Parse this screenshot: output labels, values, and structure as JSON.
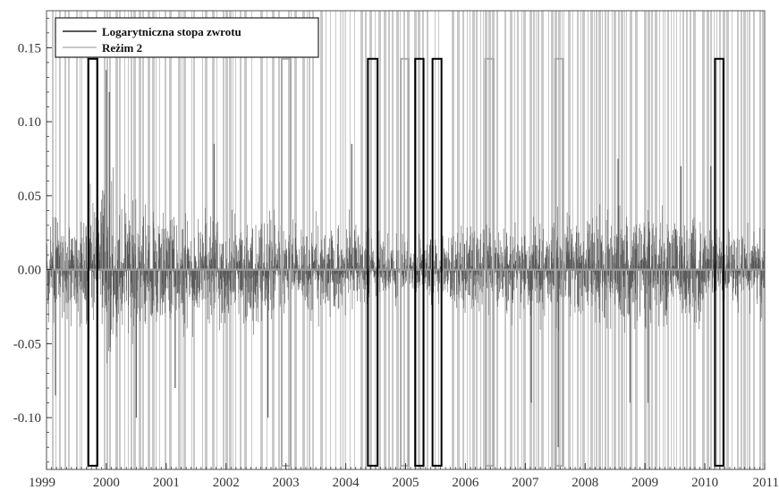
{
  "chart_data": {
    "type": "line",
    "title": "",
    "xlabel": "",
    "ylabel": "",
    "xlim": [
      1999,
      2011
    ],
    "ylim": [
      -0.135,
      0.175
    ],
    "x_ticks": [
      1999,
      2000,
      2001,
      2002,
      2003,
      2004,
      2005,
      2006,
      2007,
      2008,
      2009,
      2010,
      2011
    ],
    "x_tick_labels": [
      "1999",
      "2000",
      "2001",
      "2002",
      "2003",
      "2004",
      "2005",
      "2006",
      "2007",
      "2008",
      "2009",
      "2010",
      "2011"
    ],
    "y_ticks": [
      -0.1,
      -0.05,
      0.0,
      0.05,
      0.1,
      0.15
    ],
    "y_tick_labels": [
      "-0.10",
      "-0.05",
      "0.00",
      "0.05",
      "0.10",
      "0.15"
    ],
    "legend": {
      "placement": "top-left",
      "entries": [
        "Logarytniczna stopa zwrotu",
        "Reżim 2"
      ]
    },
    "series": [
      {
        "name": "Logarytniczna stopa zwrotu",
        "color": "#5a5a5a",
        "amplitude_profile": {
          "x": [
            1999.0,
            1999.5,
            1999.8,
            2000.0,
            2000.3,
            2000.7,
            2001.0,
            2001.5,
            2002.0,
            2002.5,
            2003.0,
            2003.5,
            2004.0,
            2004.5,
            2005.0,
            2005.5,
            2006.0,
            2006.5,
            2007.0,
            2007.5,
            2008.0,
            2008.5,
            2009.0,
            2009.5,
            2010.0,
            2010.5,
            2011.0
          ],
          "y": [
            0.055,
            0.05,
            0.07,
            0.085,
            0.075,
            0.06,
            0.06,
            0.055,
            0.055,
            0.05,
            0.045,
            0.045,
            0.045,
            0.035,
            0.03,
            0.03,
            0.04,
            0.045,
            0.04,
            0.05,
            0.055,
            0.06,
            0.06,
            0.05,
            0.045,
            0.04,
            0.04
          ]
        },
        "spikes": [
          {
            "x": 1999.15,
            "y": -0.085
          },
          {
            "x": 1999.85,
            "y": -0.1
          },
          {
            "x": 2000.0,
            "y": 0.135
          },
          {
            "x": 2000.05,
            "y": 0.12
          },
          {
            "x": 2000.5,
            "y": -0.1
          },
          {
            "x": 2001.15,
            "y": -0.08
          },
          {
            "x": 2001.8,
            "y": 0.085
          },
          {
            "x": 2002.7,
            "y": -0.1
          },
          {
            "x": 2004.1,
            "y": 0.085
          },
          {
            "x": 2007.1,
            "y": -0.09
          },
          {
            "x": 2007.55,
            "y": -0.12
          },
          {
            "x": 2008.55,
            "y": 0.075
          },
          {
            "x": 2008.75,
            "y": -0.09
          },
          {
            "x": 2009.05,
            "y": -0.09
          },
          {
            "x": 2009.6,
            "y": 0.07
          },
          {
            "x": 2010.1,
            "y": 0.07
          }
        ]
      },
      {
        "name": "Reżim 2",
        "color": "#c8c8c8",
        "density_profile": {
          "x": [
            1999.0,
            2000.0,
            2001.0,
            2002.0,
            2003.0,
            2004.0,
            2004.5,
            2005.0,
            2005.5,
            2006.0,
            2007.0,
            2008.0,
            2009.0,
            2010.0,
            2011.0
          ],
          "y": [
            0.32,
            0.38,
            0.36,
            0.34,
            0.3,
            0.34,
            0.28,
            0.24,
            0.28,
            0.3,
            0.38,
            0.44,
            0.46,
            0.42,
            0.44
          ]
        }
      }
    ],
    "highlighted_intervals": [
      {
        "from": 1999.7,
        "to": 1999.85,
        "color": "#000000"
      },
      {
        "from": 2002.93,
        "to": 2003.08,
        "color": "#aaaaaa"
      },
      {
        "from": 2004.37,
        "to": 2004.53,
        "color": "#000000"
      },
      {
        "from": 2004.92,
        "to": 2005.05,
        "color": "#aaaaaa"
      },
      {
        "from": 2005.16,
        "to": 2005.3,
        "color": "#000000"
      },
      {
        "from": 2005.45,
        "to": 2005.6,
        "color": "#000000"
      },
      {
        "from": 2006.33,
        "to": 2006.47,
        "color": "#aaaaaa"
      },
      {
        "from": 2007.5,
        "to": 2007.63,
        "color": "#aaaaaa"
      },
      {
        "from": 2010.17,
        "to": 2010.31,
        "color": "#000000"
      }
    ],
    "interval_y_range": [
      -0.1325,
      0.1425
    ],
    "grid": false,
    "zero_line_color": "#999999"
  }
}
